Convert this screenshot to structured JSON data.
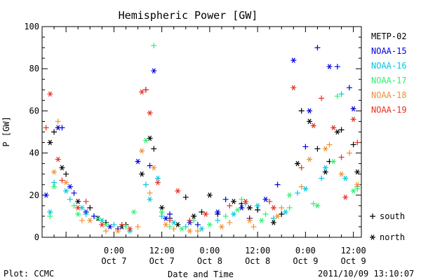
{
  "chart_data": {
    "type": "scatter",
    "title": "Hemispheric Power [GW]",
    "xlabel": "Date and Time",
    "ylabel": "P [GW]",
    "ylim": [
      0,
      100
    ],
    "xlim": [
      "2011-10-06 06:00",
      "2011-10-09 14:00"
    ],
    "yticks": [
      0,
      20,
      40,
      60,
      80,
      100
    ],
    "xticks": [
      {
        "x": "2011-10-07 00:00",
        "time": "0:00",
        "date": "Oct 7"
      },
      {
        "x": "2011-10-07 12:00",
        "time": "12:00",
        "date": "Oct 7"
      },
      {
        "x": "2011-10-08 00:00",
        "time": "0:00",
        "date": "Oct 8"
      },
      {
        "x": "2011-10-08 12:00",
        "time": "12:00",
        "date": "Oct 8"
      },
      {
        "x": "2011-10-09 00:00",
        "time": "0:00",
        "date": "Oct 9"
      },
      {
        "x": "2011-10-09 12:00",
        "time": "12:00",
        "date": "Oct 9"
      }
    ],
    "grid": false,
    "legend_position": "right",
    "marker_legend": [
      {
        "symbol": "+",
        "label": "south"
      },
      {
        "symbol": "*",
        "label": "north"
      }
    ],
    "series": [
      {
        "name": "METP-02",
        "color": "#000000",
        "south": [
          [
            "2011-10-06 09:00",
            50
          ],
          [
            "2011-10-06 12:00",
            30
          ],
          [
            "2011-10-06 18:00",
            14
          ],
          [
            "2011-10-06 22:00",
            7
          ],
          [
            "2011-10-07 03:00",
            6
          ],
          [
            "2011-10-07 08:00",
            70
          ],
          [
            "2011-10-07 10:00",
            42
          ],
          [
            "2011-10-07 14:00",
            9
          ],
          [
            "2011-10-07 18:00",
            19
          ],
          [
            "2011-10-07 22:00",
            12
          ],
          [
            "2011-10-08 02:00",
            11
          ],
          [
            "2011-10-08 08:00",
            16
          ],
          [
            "2011-10-08 12:00",
            13
          ],
          [
            "2011-10-08 18:00",
            11
          ],
          [
            "2011-10-08 23:00",
            60
          ],
          [
            "2011-10-09 03:00",
            42
          ],
          [
            "2011-10-09 06:00",
            36
          ],
          [
            "2011-10-09 09:00",
            51
          ],
          [
            "2011-10-09 12:00",
            44
          ]
        ],
        "north": [
          [
            "2011-10-06 08:00",
            45
          ],
          [
            "2011-10-06 11:00",
            33
          ],
          [
            "2011-10-06 15:00",
            17
          ],
          [
            "2011-10-06 20:00",
            9
          ],
          [
            "2011-10-07 02:00",
            5
          ],
          [
            "2011-10-07 07:00",
            30
          ],
          [
            "2011-10-07 09:00",
            47
          ],
          [
            "2011-10-07 12:00",
            14
          ],
          [
            "2011-10-07 16:00",
            6
          ],
          [
            "2011-10-07 20:00",
            10
          ],
          [
            "2011-10-08 00:00",
            20
          ],
          [
            "2011-10-08 06:00",
            17
          ],
          [
            "2011-10-08 10:00",
            14
          ],
          [
            "2011-10-08 16:00",
            7
          ],
          [
            "2011-10-08 22:00",
            35
          ],
          [
            "2011-10-09 01:00",
            55
          ],
          [
            "2011-10-09 05:00",
            31
          ],
          [
            "2011-10-09 08:00",
            50
          ],
          [
            "2011-10-09 13:00",
            31
          ]
        ]
      },
      {
        "name": "NOAA-15",
        "color": "#0000e0",
        "south": [
          [
            "2011-10-06 11:00",
            52
          ],
          [
            "2011-10-06 14:00",
            21
          ],
          [
            "2011-10-06 19:00",
            10
          ],
          [
            "2011-10-07 01:00",
            4
          ],
          [
            "2011-10-07 09:00",
            34
          ],
          [
            "2011-10-07 14:00",
            11
          ],
          [
            "2011-10-07 21:00",
            6
          ],
          [
            "2011-10-08 04:00",
            18
          ],
          [
            "2011-10-08 10:00",
            9
          ],
          [
            "2011-10-08 17:00",
            25
          ],
          [
            "2011-10-09 00:00",
            43
          ],
          [
            "2011-10-09 03:00",
            90
          ],
          [
            "2011-10-09 08:00",
            81
          ],
          [
            "2011-10-09 11:00",
            71
          ]
        ],
        "north": [
          [
            "2011-10-06 07:00",
            20
          ],
          [
            "2011-10-06 10:00",
            52
          ],
          [
            "2011-10-06 13:00",
            24
          ],
          [
            "2011-10-06 17:00",
            12
          ],
          [
            "2011-10-06 23:00",
            5
          ],
          [
            "2011-10-07 06:00",
            36
          ],
          [
            "2011-10-07 10:00",
            79
          ],
          [
            "2011-10-07 13:00",
            9
          ],
          [
            "2011-10-07 19:00",
            7
          ],
          [
            "2011-10-08 02:00",
            12
          ],
          [
            "2011-10-08 08:00",
            14
          ],
          [
            "2011-10-08 14:00",
            18
          ],
          [
            "2011-10-08 21:00",
            84
          ],
          [
            "2011-10-09 01:00",
            60
          ],
          [
            "2011-10-09 06:00",
            81
          ],
          [
            "2011-10-09 12:00",
            61
          ]
        ]
      },
      {
        "name": "NOAA-16",
        "color": "#00c8e0",
        "south": [
          [
            "2011-10-06 09:00",
            26
          ],
          [
            "2011-10-06 13:00",
            18
          ],
          [
            "2011-10-06 17:00",
            11
          ],
          [
            "2011-10-07 00:00",
            6
          ],
          [
            "2011-10-07 08:00",
            25
          ],
          [
            "2011-10-07 12:00",
            10
          ],
          [
            "2011-10-07 18:00",
            5
          ],
          [
            "2011-10-08 02:00",
            8
          ],
          [
            "2011-10-08 09:00",
            16
          ],
          [
            "2011-10-08 16:00",
            9
          ],
          [
            "2011-10-08 22:00",
            21
          ],
          [
            "2011-10-09 04:00",
            28
          ],
          [
            "2011-10-09 09:00",
            68
          ],
          [
            "2011-10-09 13:00",
            24
          ]
        ],
        "north": [
          [
            "2011-10-06 08:00",
            12
          ],
          [
            "2011-10-06 12:00",
            22
          ],
          [
            "2011-10-06 16:00",
            14
          ],
          [
            "2011-10-06 21:00",
            8
          ],
          [
            "2011-10-07 04:00",
            3
          ],
          [
            "2011-10-07 09:00",
            18
          ],
          [
            "2011-10-07 11:00",
            28
          ],
          [
            "2011-10-07 15:00",
            7
          ],
          [
            "2011-10-07 22:00",
            4
          ],
          [
            "2011-10-08 06:00",
            11
          ],
          [
            "2011-10-08 12:00",
            15
          ],
          [
            "2011-10-08 19:00",
            12
          ],
          [
            "2011-10-09 00:00",
            23
          ],
          [
            "2011-10-09 05:00",
            33
          ],
          [
            "2011-10-09 10:00",
            28
          ]
        ]
      },
      {
        "name": "NOAA-17",
        "color": "#30f070",
        "south": [
          [
            "2011-10-06 08:00",
            10
          ],
          [
            "2011-10-06 14:00",
            15
          ],
          [
            "2011-10-06 20:00",
            9
          ],
          [
            "2011-10-07 03:00",
            5
          ],
          [
            "2011-10-07 10:00",
            91
          ],
          [
            "2011-10-07 14:00",
            5
          ],
          [
            "2011-10-07 20:00",
            8
          ],
          [
            "2011-10-08 04:00",
            10
          ],
          [
            "2011-10-08 08:00",
            18
          ],
          [
            "2011-10-08 14:00",
            11
          ],
          [
            "2011-10-08 20:00",
            14
          ],
          [
            "2011-10-09 02:00",
            16
          ],
          [
            "2011-10-09 08:00",
            67
          ],
          [
            "2011-10-09 13:00",
            23
          ]
        ],
        "north": [
          [
            "2011-10-06 09:00",
            24
          ],
          [
            "2011-10-06 15:00",
            11
          ],
          [
            "2011-10-06 22:00",
            6
          ],
          [
            "2011-10-07 05:00",
            12
          ],
          [
            "2011-10-07 08:00",
            46
          ],
          [
            "2011-10-07 12:00",
            12
          ],
          [
            "2011-10-07 17:00",
            4
          ],
          [
            "2011-10-08 00:00",
            6
          ],
          [
            "2011-10-08 07:00",
            13
          ],
          [
            "2011-10-08 13:00",
            8
          ],
          [
            "2011-10-08 20:00",
            20
          ],
          [
            "2011-10-09 03:00",
            15
          ],
          [
            "2011-10-09 07:00",
            36
          ],
          [
            "2011-10-09 12:00",
            22
          ]
        ]
      },
      {
        "name": "NOAA-18",
        "color": "#f09030",
        "south": [
          [
            "2011-10-06 10:00",
            55
          ],
          [
            "2011-10-06 16:00",
            8
          ],
          [
            "2011-10-06 22:00",
            3
          ],
          [
            "2011-10-07 06:00",
            5
          ],
          [
            "2011-10-07 09:00",
            21
          ],
          [
            "2011-10-07 15:00",
            4
          ],
          [
            "2011-10-07 21:00",
            3
          ],
          [
            "2011-10-08 05:00",
            7
          ],
          [
            "2011-10-08 11:00",
            5
          ],
          [
            "2011-10-08 18:00",
            14
          ],
          [
            "2011-10-08 23:00",
            24
          ],
          [
            "2011-10-09 06:00",
            44
          ],
          [
            "2011-10-09 11:00",
            40
          ]
        ],
        "north": [
          [
            "2011-10-06 09:00",
            31
          ],
          [
            "2011-10-06 12:00",
            26
          ],
          [
            "2011-10-06 18:00",
            8
          ],
          [
            "2011-10-07 01:00",
            3
          ],
          [
            "2011-10-07 07:00",
            41
          ],
          [
            "2011-10-07 10:00",
            33
          ],
          [
            "2011-10-07 13:00",
            6
          ],
          [
            "2011-10-07 19:00",
            3
          ],
          [
            "2011-10-08 03:00",
            5
          ],
          [
            "2011-10-08 10:00",
            8
          ],
          [
            "2011-10-08 17:00",
            10
          ],
          [
            "2011-10-09 01:00",
            37
          ],
          [
            "2011-10-09 05:00",
            42
          ],
          [
            "2011-10-09 09:00",
            30
          ],
          [
            "2011-10-09 13:00",
            25
          ]
        ]
      },
      {
        "name": "NOAA-19",
        "color": "#e83020",
        "south": [
          [
            "2011-10-06 07:00",
            52
          ],
          [
            "2011-10-06 11:00",
            27
          ],
          [
            "2011-10-06 17:00",
            17
          ],
          [
            "2011-10-07 02:00",
            6
          ],
          [
            "2011-10-07 08:00",
            70
          ],
          [
            "2011-10-07 14:00",
            8
          ],
          [
            "2011-10-07 19:00",
            8
          ],
          [
            "2011-10-08 05:00",
            15
          ],
          [
            "2011-10-08 15:00",
            17
          ],
          [
            "2011-10-08 23:00",
            33
          ],
          [
            "2011-10-09 04:00",
            66
          ],
          [
            "2011-10-09 09:00",
            38
          ],
          [
            "2011-10-09 13:00",
            45
          ]
        ],
        "north": [
          [
            "2011-10-06 08:00",
            68
          ],
          [
            "2011-10-06 10:00",
            37
          ],
          [
            "2011-10-06 15:00",
            14
          ],
          [
            "2011-10-06 21:00",
            6
          ],
          [
            "2011-10-07 04:00",
            4
          ],
          [
            "2011-10-07 07:00",
            69
          ],
          [
            "2011-10-07 09:00",
            59
          ],
          [
            "2011-10-07 11:00",
            26
          ],
          [
            "2011-10-07 16:00",
            22
          ],
          [
            "2011-10-07 23:00",
            11
          ],
          [
            "2011-10-08 09:00",
            17
          ],
          [
            "2011-10-08 16:00",
            14
          ],
          [
            "2011-10-08 21:00",
            71
          ],
          [
            "2011-10-09 02:00",
            53
          ],
          [
            "2011-10-09 07:00",
            52
          ],
          [
            "2011-10-09 10:00",
            19
          ],
          [
            "2011-10-09 12:00",
            56
          ]
        ]
      }
    ]
  },
  "footer": {
    "plot_source": "Plot: CCMC",
    "generated": "2011/10/09 13:10:07"
  }
}
